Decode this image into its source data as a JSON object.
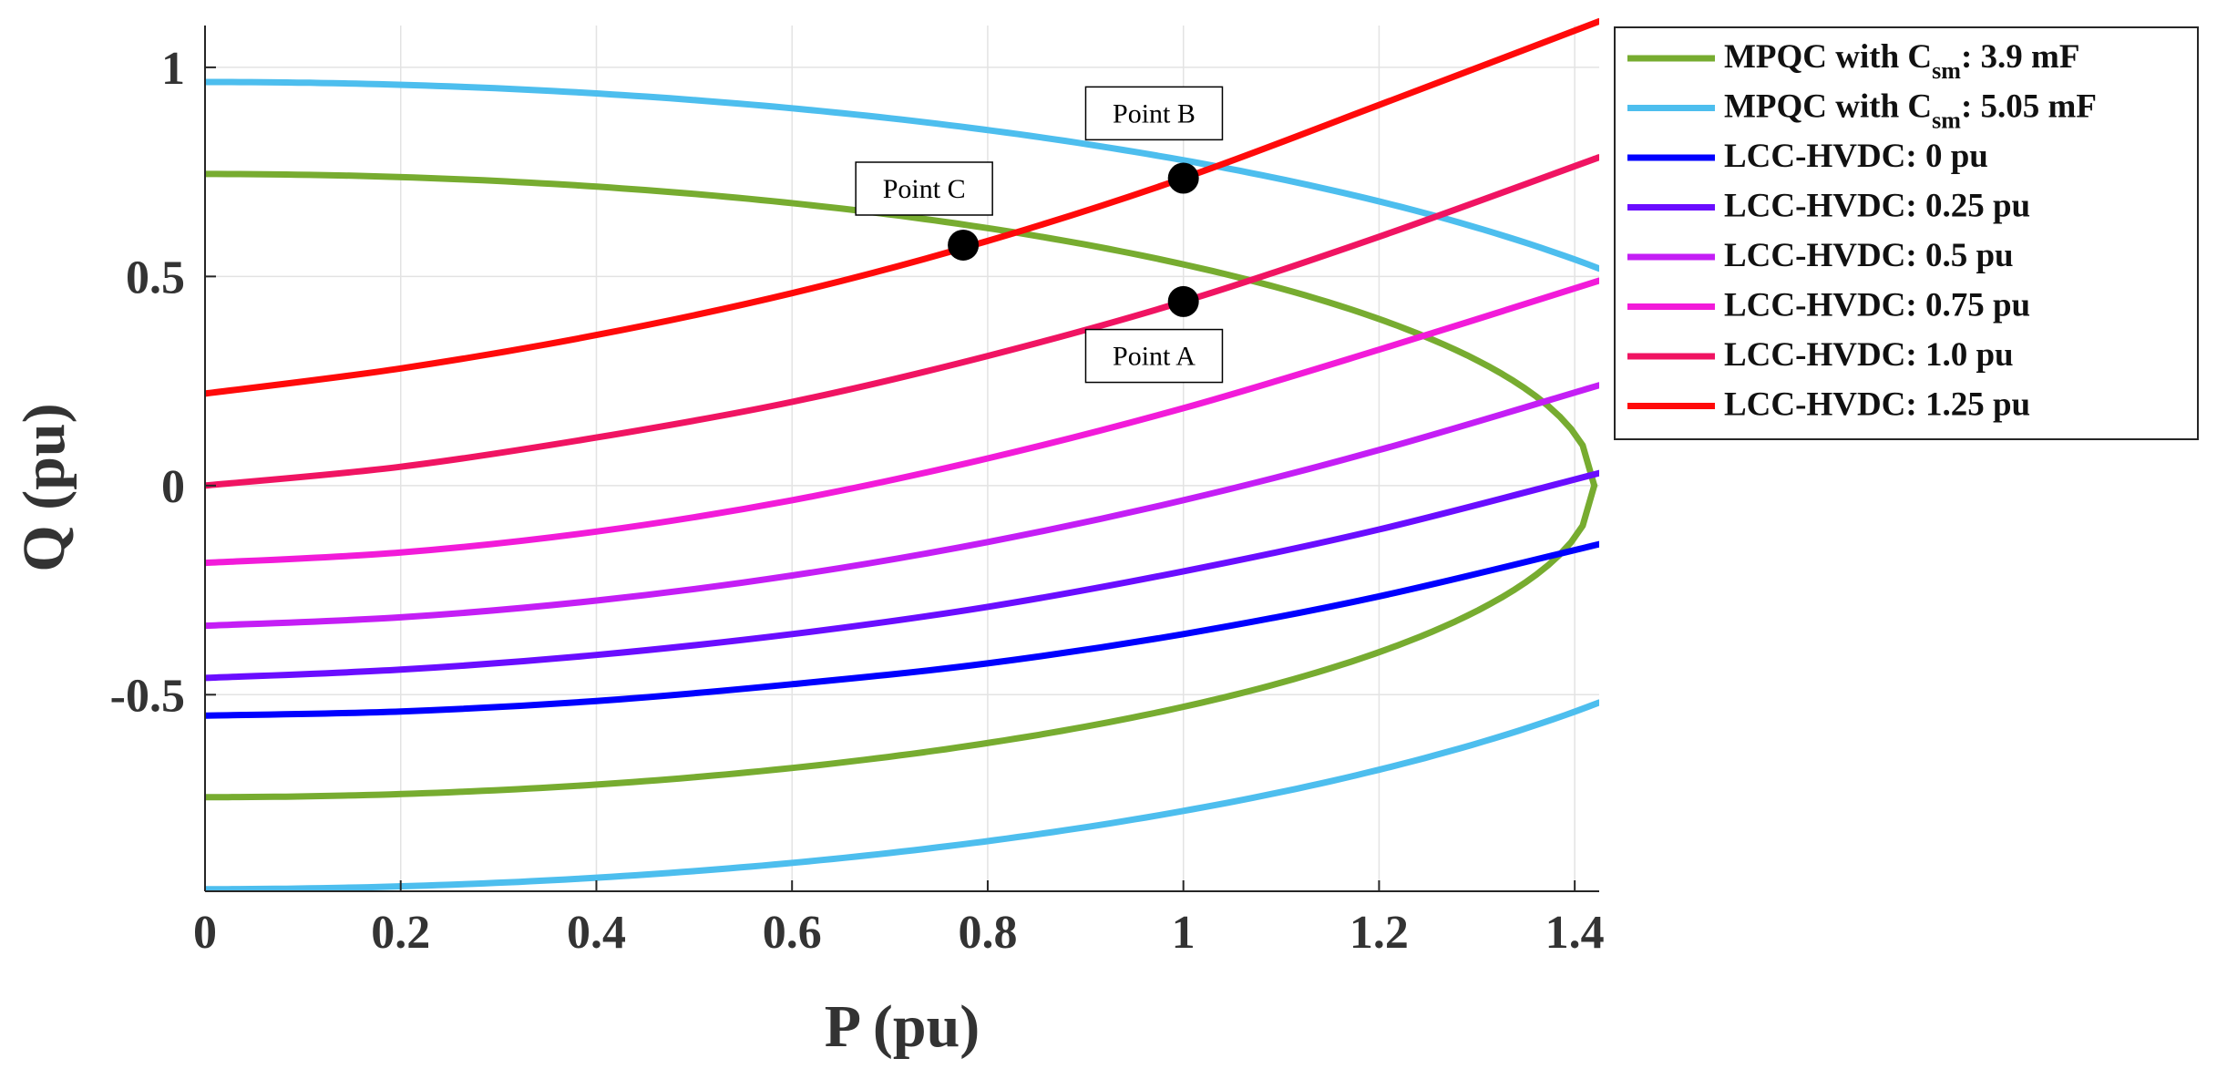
{
  "chart_data": {
    "type": "line",
    "title": "",
    "xlabel": "P (pu)",
    "ylabel": "Q (pu)",
    "xlim": [
      0,
      1.425
    ],
    "ylim": [
      -0.97,
      1.1
    ],
    "xticks": [
      0,
      0.2,
      0.4,
      0.6,
      0.8,
      1,
      1.2,
      1.4
    ],
    "xtick_labels": [
      "0",
      "0.2",
      "0.4",
      "0.6",
      "0.8",
      "1",
      "1.2",
      "1.4"
    ],
    "yticks": [
      -0.5,
      0,
      0.5,
      1
    ],
    "ytick_labels": [
      "-0.5",
      "0",
      "0.5",
      "1"
    ],
    "grid": true,
    "legend_position": "outside-right-top",
    "series": [
      {
        "name": "MPQC with C_sm: 3.9 mF",
        "legend_main": "MPQC with C",
        "legend_sub": "sm",
        "legend_tail": ": 3.9 mF",
        "color": "#77AC30",
        "shape": "ellipse",
        "q0": 0.745,
        "pmax": 1.42,
        "in_legend": true
      },
      {
        "name": "MPQC with C_sm: 5.05 mF",
        "legend_main": "MPQC with C",
        "legend_sub": "sm",
        "legend_tail": ": 5.05 mF",
        "color": "#4DBEEE",
        "shape": "ellipse",
        "q0": 0.965,
        "pmax": 1.69,
        "in_legend": true
      },
      {
        "name": "LCC-HVDC: 0 pu",
        "legend_main": "LCC-HVDC: 0 pu",
        "color": "#0000FF",
        "shape": "poly",
        "x": [
          0,
          0.2,
          0.4,
          0.6,
          0.8,
          1.0,
          1.2,
          1.425
        ],
        "y": [
          -0.55,
          -0.54,
          -0.515,
          -0.475,
          -0.425,
          -0.355,
          -0.265,
          -0.14
        ],
        "in_legend": true
      },
      {
        "name": "LCC-HVDC: 0.25 pu",
        "legend_main": "LCC-HVDC: 0.25 pu",
        "color": "#6A0DFF",
        "shape": "poly",
        "x": [
          0,
          0.2,
          0.4,
          0.6,
          0.8,
          1.0,
          1.2,
          1.425
        ],
        "y": [
          -0.46,
          -0.44,
          -0.405,
          -0.355,
          -0.29,
          -0.205,
          -0.105,
          0.03
        ],
        "in_legend": true
      },
      {
        "name": "LCC-HVDC: 0.5 pu",
        "legend_main": "LCC-HVDC: 0.5 pu",
        "color": "#C41EF5",
        "shape": "poly",
        "x": [
          0,
          0.2,
          0.4,
          0.6,
          0.8,
          1.0,
          1.2,
          1.425
        ],
        "y": [
          -0.335,
          -0.315,
          -0.275,
          -0.215,
          -0.135,
          -0.035,
          0.085,
          0.24
        ],
        "in_legend": true
      },
      {
        "name": "LCC-HVDC: 0.75 pu",
        "legend_main": "LCC-HVDC: 0.75 pu",
        "color": "#F21BD9",
        "shape": "poly",
        "x": [
          0,
          0.2,
          0.4,
          0.6,
          0.8,
          1.0,
          1.2,
          1.425
        ],
        "y": [
          -0.185,
          -0.16,
          -0.11,
          -0.035,
          0.065,
          0.185,
          0.325,
          0.49
        ],
        "in_legend": true
      },
      {
        "name": "LCC-HVDC: 1.0 pu",
        "legend_main": "LCC-HVDC: 1.0 pu",
        "color": "#F01462",
        "shape": "poly",
        "x": [
          0,
          0.2,
          0.4,
          0.6,
          0.8,
          1.0,
          1.2,
          1.425
        ],
        "y": [
          0.0,
          0.045,
          0.115,
          0.2,
          0.31,
          0.44,
          0.595,
          0.785
        ],
        "in_legend": true
      },
      {
        "name": "LCC-HVDC: 1.25 pu",
        "legend_main": "LCC-HVDC: 1.25 pu",
        "color": "#FF0A0A",
        "shape": "poly",
        "x": [
          0,
          0.2,
          0.4,
          0.6,
          0.8,
          1.0,
          1.2,
          1.425
        ],
        "y": [
          0.22,
          0.28,
          0.36,
          0.46,
          0.585,
          0.735,
          0.91,
          1.11
        ],
        "in_legend": true
      }
    ],
    "annotations": [
      {
        "label": "Point B",
        "x": 1.0,
        "y": 0.735,
        "box_x": 0.97,
        "box_y": 0.89
      },
      {
        "label": "Point C",
        "x": 0.775,
        "y": 0.575,
        "box_x": 0.735,
        "box_y": 0.71
      },
      {
        "label": "Point A",
        "x": 1.0,
        "y": 0.44,
        "box_x": 0.97,
        "box_y": 0.31
      }
    ]
  }
}
